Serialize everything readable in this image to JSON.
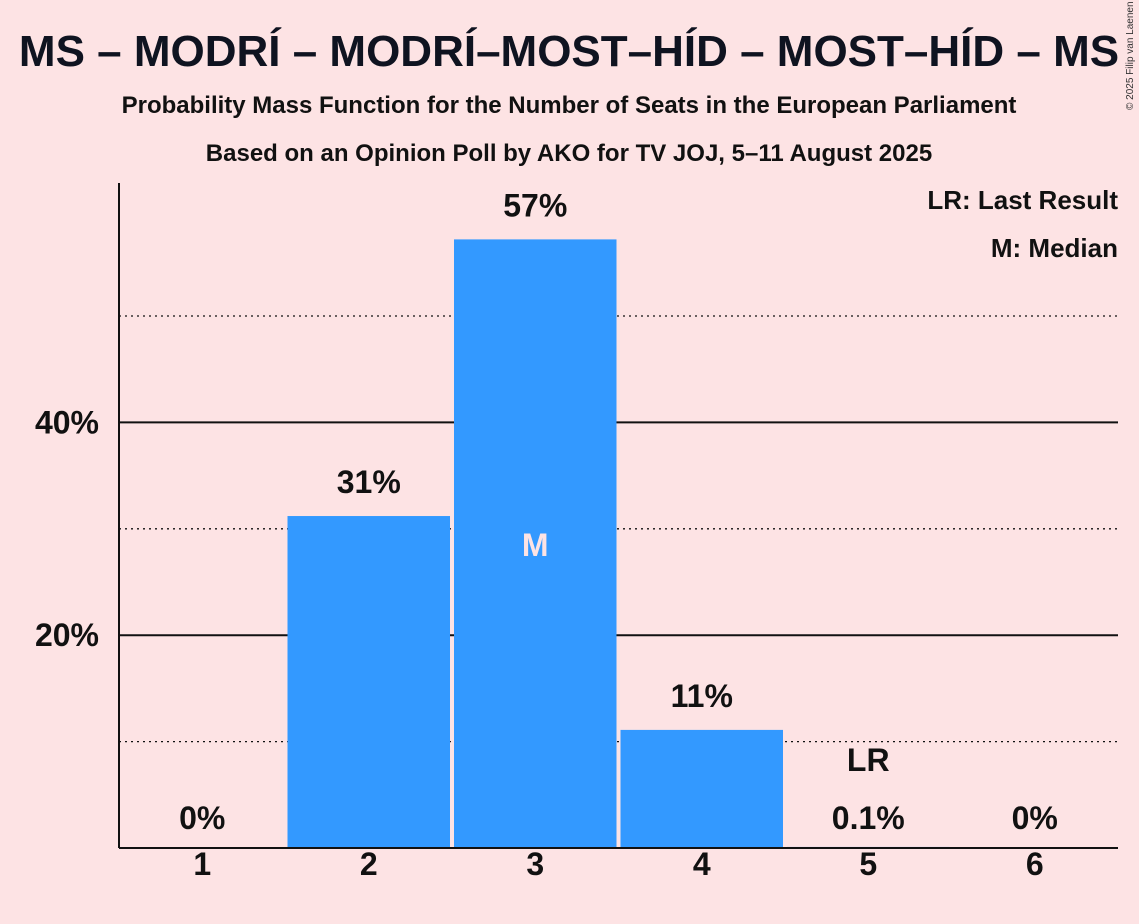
{
  "title": "MS – MODRÍ – MODRÍ–MOST–HÍD – MOST–HÍD – MS",
  "subtitle1": "Probability Mass Function for the Number of Seats in the European Parliament",
  "subtitle2": "Based on an Opinion Poll by AKO for TV JOJ, 5–11 August 2025",
  "copyright": "© 2025 Filip van Laenen",
  "legend": {
    "last_result": "LR: Last Result",
    "median": "M: Median"
  },
  "colors": {
    "background": "#fde3e4",
    "bar": "#3399ff",
    "median_text": "#fde3e4"
  },
  "chart_data": {
    "type": "bar",
    "categories": [
      "1",
      "2",
      "3",
      "4",
      "5",
      "6"
    ],
    "values": [
      0,
      31.2,
      57.2,
      11.1,
      0.1,
      0
    ],
    "labels": [
      "0%",
      "31%",
      "57%",
      "11%",
      "0.1%",
      "0%"
    ],
    "ylim": [
      0,
      62.5
    ],
    "y_major_ticks": [
      20,
      40
    ],
    "y_major_tick_labels": [
      "20%",
      "40%"
    ],
    "y_minor_gridlines": [
      10,
      30,
      50
    ],
    "median_category": "3",
    "median_marker": "M",
    "last_result_category": "5",
    "last_result_marker": "LR",
    "legend_position": "top-right"
  }
}
